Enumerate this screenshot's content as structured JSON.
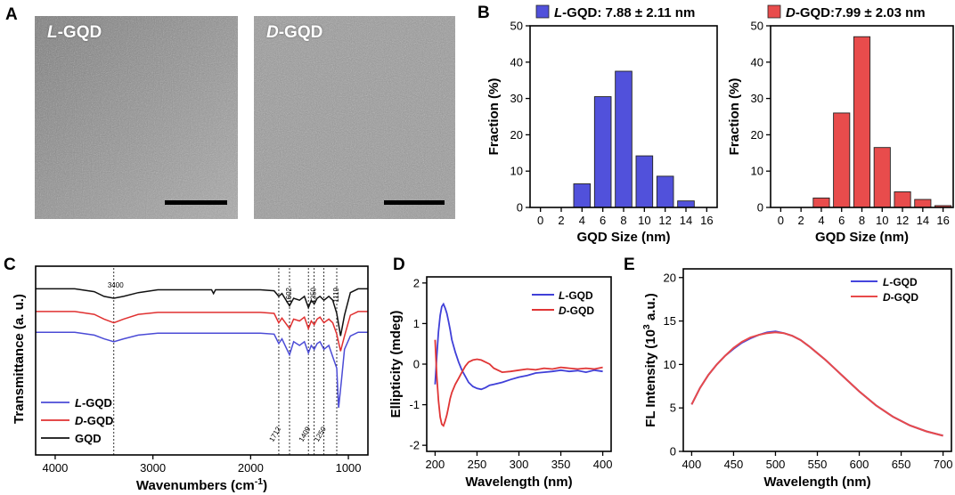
{
  "panel_labels": [
    "A",
    "B",
    "C",
    "D",
    "E"
  ],
  "tem_images": [
    {
      "label_italic": "L",
      "label_rest": "-GQD"
    },
    {
      "label_italic": "D",
      "label_rest": "-GQD"
    }
  ],
  "chart_data": [
    {
      "type": "bar",
      "panel": "B-left",
      "legend_italic": "L",
      "legend_rest": "-GQD: 7.88 ± 2.11 nm",
      "color": "#5151db",
      "categories": [
        4,
        6,
        8,
        10,
        12,
        14
      ],
      "values": [
        6.5,
        30.5,
        37.5,
        14.2,
        8.6,
        1.8
      ],
      "xlabel": "GQD Size (nm)",
      "ylabel": "Fraction (%)",
      "xlim": [
        -1,
        17
      ],
      "ylim": [
        0,
        50
      ],
      "xticks": [
        0,
        2,
        4,
        6,
        8,
        10,
        12,
        14,
        16
      ],
      "yticks": [
        0,
        10,
        20,
        30,
        40,
        50
      ]
    },
    {
      "type": "bar",
      "panel": "B-right",
      "legend_italic": "D",
      "legend_rest": "-GQD:7.99 ± 2.03 nm",
      "color": "#e84c4c",
      "categories": [
        4,
        6,
        8,
        10,
        12,
        14,
        16
      ],
      "values": [
        2.6,
        26.0,
        47.0,
        16.5,
        4.3,
        2.2,
        0.5
      ],
      "xlabel": "GQD Size (nm)",
      "ylabel": "Fraction (%)",
      "xlim": [
        -1,
        17
      ],
      "ylim": [
        0,
        50
      ],
      "xticks": [
        0,
        2,
        4,
        6,
        8,
        10,
        12,
        14,
        16
      ],
      "yticks": [
        0,
        10,
        20,
        30,
        40,
        50
      ]
    },
    {
      "type": "line",
      "panel": "C",
      "xlabel": "Wavenumbers (cm",
      "xlabel_sup": "-1",
      "xlabel_end": ")",
      "ylabel": "Transmittance (a. u.)",
      "xlim": [
        4200,
        800
      ],
      "xticks": [
        4000,
        3000,
        2000,
        1000
      ],
      "peak_lines": [
        3400,
        1712,
        1602,
        1409,
        1350,
        1250,
        1119
      ],
      "peak_labels_top": [
        "3400",
        "1602",
        "1350",
        "1119"
      ],
      "peak_labels_bottom": [
        "1712",
        "1409",
        "1250"
      ],
      "series": [
        {
          "name_italic": "",
          "name_rest": "GQD",
          "color": "#111111",
          "x": [
            4200,
            3800,
            3600,
            3500,
            3400,
            3300,
            3150,
            2950,
            2400,
            2380,
            2360,
            1900,
            1760,
            1712,
            1680,
            1602,
            1560,
            1500,
            1450,
            1409,
            1380,
            1350,
            1320,
            1290,
            1250,
            1200,
            1160,
            1119,
            1080,
            1040,
            980,
            900,
            850,
            800
          ],
          "y": [
            88,
            88,
            86.5,
            84,
            83,
            84,
            86,
            87.5,
            87.5,
            85.5,
            87.5,
            87.5,
            87,
            84,
            85.5,
            79,
            83,
            82,
            84,
            78,
            82,
            80,
            83,
            84,
            82,
            84,
            82,
            75,
            63,
            74,
            86,
            88,
            88,
            88
          ]
        },
        {
          "name_italic": "D",
          "name_rest": "-GQD",
          "color": "#e03030",
          "x": [
            4200,
            3800,
            3600,
            3500,
            3400,
            3300,
            3150,
            2950,
            1900,
            1760,
            1712,
            1680,
            1602,
            1560,
            1500,
            1450,
            1409,
            1380,
            1350,
            1320,
            1290,
            1250,
            1200,
            1160,
            1119,
            1080,
            1040,
            980,
            900,
            850,
            800
          ],
          "y": [
            76,
            76,
            74.5,
            72,
            70,
            72,
            74.5,
            75.5,
            75.5,
            75,
            70,
            72.5,
            67,
            72,
            71,
            73,
            67,
            71,
            69,
            72,
            73,
            70,
            72,
            70,
            64,
            55,
            63,
            74,
            76,
            76,
            76
          ]
        },
        {
          "name_italic": "L",
          "name_rest": "-GQD",
          "color": "#4b4bd6",
          "x": [
            4200,
            3800,
            3600,
            3500,
            3400,
            3300,
            3150,
            2950,
            1900,
            1760,
            1712,
            1680,
            1602,
            1560,
            1500,
            1450,
            1409,
            1380,
            1350,
            1320,
            1290,
            1250,
            1200,
            1160,
            1119,
            1100,
            1070,
            1040,
            980,
            900,
            850,
            800
          ],
          "y": [
            65,
            65,
            63.5,
            61.5,
            60,
            61.5,
            63.5,
            64.5,
            64.5,
            64,
            59,
            61.5,
            53,
            60,
            58,
            60,
            54,
            58,
            56,
            59,
            60,
            56,
            58,
            52,
            46,
            25,
            40,
            56,
            63,
            65,
            65,
            65
          ]
        }
      ]
    },
    {
      "type": "line",
      "panel": "D",
      "xlabel": "Wavelength (nm)",
      "ylabel": "Ellipticity (mdeg)",
      "xlim": [
        190,
        410
      ],
      "ylim": [
        -2.15,
        2.15
      ],
      "xticks": [
        200,
        250,
        300,
        350,
        400
      ],
      "yticks": [
        -2,
        -1,
        0,
        1,
        2
      ],
      "series": [
        {
          "name_italic": "L",
          "name_rest": "-GQD",
          "color": "#4040d8",
          "x": [
            200,
            202,
            204,
            206,
            208,
            210,
            212,
            214,
            216,
            218,
            220,
            224,
            228,
            232,
            236,
            240,
            245,
            250,
            255,
            260,
            265,
            270,
            280,
            290,
            300,
            310,
            320,
            330,
            340,
            350,
            360,
            370,
            380,
            390,
            400
          ],
          "y": [
            -0.5,
            0.2,
            0.8,
            1.2,
            1.42,
            1.48,
            1.38,
            1.25,
            1.05,
            0.85,
            0.6,
            0.3,
            0.05,
            -0.15,
            -0.3,
            -0.45,
            -0.55,
            -0.6,
            -0.62,
            -0.58,
            -0.52,
            -0.5,
            -0.45,
            -0.38,
            -0.32,
            -0.28,
            -0.22,
            -0.2,
            -0.18,
            -0.15,
            -0.18,
            -0.16,
            -0.2,
            -0.15,
            -0.18
          ]
        },
        {
          "name_italic": "D",
          "name_rest": "-GQD",
          "color": "#e03535",
          "x": [
            200,
            202,
            204,
            206,
            208,
            210,
            212,
            214,
            216,
            218,
            220,
            224,
            228,
            232,
            236,
            240,
            245,
            250,
            255,
            260,
            265,
            270,
            280,
            290,
            300,
            310,
            320,
            330,
            340,
            350,
            360,
            370,
            380,
            390,
            400
          ],
          "y": [
            0.6,
            -0.3,
            -0.9,
            -1.3,
            -1.48,
            -1.52,
            -1.4,
            -1.25,
            -1.05,
            -0.85,
            -0.7,
            -0.5,
            -0.35,
            -0.2,
            -0.05,
            0.05,
            0.1,
            0.12,
            0.1,
            0.05,
            0.0,
            -0.1,
            -0.2,
            -0.18,
            -0.15,
            -0.12,
            -0.14,
            -0.1,
            -0.12,
            -0.08,
            -0.1,
            -0.12,
            -0.1,
            -0.12,
            -0.08
          ]
        }
      ]
    },
    {
      "type": "line",
      "panel": "E",
      "xlabel": "Wavelength (nm)",
      "ylabel_pre": "FL Intensity (10",
      "ylabel_sup": "3",
      "ylabel_end": " a.u.)",
      "xlim": [
        390,
        710
      ],
      "ylim": [
        0,
        21
      ],
      "xticks": [
        400,
        450,
        500,
        550,
        600,
        650,
        700
      ],
      "yticks": [
        0,
        5,
        10,
        15,
        20
      ],
      "series": [
        {
          "name_italic": "L",
          "name_rest": "-GQD",
          "color": "#4545dd",
          "x": [
            400,
            410,
            420,
            430,
            440,
            450,
            460,
            470,
            480,
            490,
            500,
            510,
            520,
            530,
            540,
            550,
            560,
            570,
            580,
            590,
            600,
            620,
            640,
            660,
            680,
            700
          ],
          "y": [
            5.4,
            7.3,
            8.8,
            10.0,
            11.0,
            11.8,
            12.5,
            13.0,
            13.4,
            13.7,
            13.8,
            13.6,
            13.3,
            12.8,
            12.1,
            11.3,
            10.5,
            9.6,
            8.7,
            7.8,
            6.9,
            5.3,
            4.0,
            3.0,
            2.3,
            1.8
          ]
        },
        {
          "name_italic": "D",
          "name_rest": "-GQD",
          "color": "#e84a4a",
          "x": [
            400,
            410,
            420,
            430,
            440,
            450,
            460,
            470,
            480,
            490,
            500,
            510,
            520,
            530,
            540,
            550,
            560,
            570,
            580,
            590,
            600,
            620,
            640,
            660,
            680,
            700
          ],
          "y": [
            5.4,
            7.3,
            8.8,
            10.0,
            11.0,
            11.9,
            12.6,
            13.1,
            13.4,
            13.6,
            13.7,
            13.6,
            13.3,
            12.8,
            12.1,
            11.3,
            10.5,
            9.6,
            8.7,
            7.8,
            6.9,
            5.3,
            4.0,
            3.0,
            2.3,
            1.8
          ]
        }
      ]
    }
  ]
}
